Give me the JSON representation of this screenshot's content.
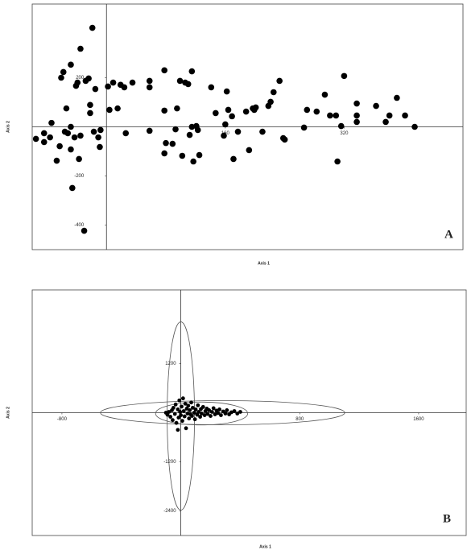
{
  "chart_data": [
    {
      "type": "scatter",
      "panel_label": "A",
      "xlabel": "Axis 1",
      "ylabel": "Axis 2",
      "color": "#000000",
      "xlim": [
        -100,
        480
      ],
      "ylim": [
        -500,
        500
      ],
      "xticks": [
        160,
        320
      ],
      "yticks": [
        200,
        -200,
        -400
      ],
      "x": [
        -95,
        -84,
        -84,
        -76,
        -74,
        -67,
        -63,
        -61,
        -58,
        -56,
        -54,
        -52,
        -48,
        -48,
        -48,
        -46,
        -43,
        -41,
        -39,
        -37,
        -35,
        -35,
        -30,
        -28,
        -24,
        -22,
        -22,
        -19,
        -17,
        -15,
        -11,
        -9,
        -8,
        2,
        4,
        9,
        15,
        19,
        24,
        26,
        35,
        58,
        58,
        58,
        78,
        78,
        78,
        80,
        89,
        93,
        95,
        99,
        102,
        106,
        110,
        112,
        115,
        115,
        117,
        121,
        123,
        125,
        141,
        147,
        158,
        160,
        162,
        164,
        169,
        171,
        177,
        188,
        192,
        197,
        199,
        201,
        210,
        218,
        221,
        225,
        233,
        238,
        240,
        266,
        270,
        283,
        294,
        301,
        309,
        311,
        316,
        320,
        337,
        337,
        337,
        363,
        376,
        381,
        391,
        402,
        415
      ],
      "values": [
        -49,
        -62,
        -26,
        -43,
        16,
        -138,
        -79,
        200,
        223,
        -20,
        75,
        -26,
        -92,
        0,
        253,
        -249,
        -43,
        167,
        180,
        -131,
        318,
        -36,
        -423,
        187,
        197,
        89,
        56,
        403,
        -20,
        154,
        -43,
        -82,
        -13,
        164,
        69,
        180,
        75,
        171,
        161,
        -26,
        180,
        -16,
        187,
        161,
        230,
        66,
        -108,
        -66,
        -69,
        -10,
        75,
        187,
        -118,
        180,
        174,
        -33,
        226,
        0,
        -141,
        3,
        -13,
        -115,
        161,
        56,
        -36,
        10,
        144,
        69,
        43,
        -131,
        -20,
        62,
        -95,
        75,
        69,
        79,
        -20,
        85,
        102,
        141,
        187,
        -46,
        -52,
        -3,
        69,
        62,
        131,
        46,
        46,
        -141,
        3,
        207,
        95,
        46,
        20,
        85,
        20,
        46,
        118,
        46,
        0
      ]
    },
    {
      "type": "scatter",
      "panel_label": "B",
      "xlabel": "Axis 1",
      "ylabel": "Axis 2",
      "color": "#000000",
      "xlim": [
        -1000,
        1920
      ],
      "ylim": [
        -3000,
        3000
      ],
      "xticks": [
        -800,
        800,
        1600
      ],
      "yticks": [
        1200,
        -1200,
        -2400
      ],
      "x": [
        -90,
        -80,
        -70,
        -60,
        -55,
        -50,
        -40,
        -35,
        -30,
        -20,
        -15,
        -10,
        -5,
        0,
        5,
        10,
        15,
        20,
        25,
        30,
        35,
        40,
        45,
        50,
        55,
        60,
        65,
        70,
        75,
        80,
        90,
        95,
        100,
        110,
        115,
        120,
        130,
        135,
        140,
        150,
        160,
        165,
        175,
        180,
        190,
        200,
        210,
        220,
        230,
        240,
        250,
        260,
        270,
        285,
        300,
        310,
        325,
        340,
        360,
        380,
        400,
        -100,
        -20
      ],
      "values": [
        -50,
        20,
        -100,
        60,
        -180,
        120,
        -30,
        200,
        -250,
        80,
        -120,
        300,
        20,
        -60,
        150,
        -200,
        350,
        40,
        -90,
        220,
        -380,
        100,
        -20,
        170,
        -140,
        60,
        -40,
        250,
        -80,
        120,
        0,
        -160,
        80,
        -50,
        180,
        20,
        -100,
        90,
        -20,
        140,
        -60,
        40,
        100,
        -30,
        60,
        -80,
        20,
        110,
        -40,
        50,
        -10,
        80,
        -60,
        30,
        -20,
        60,
        -40,
        10,
        40,
        -20,
        20,
        0,
        -420
      ],
      "ellipses": [
        {
          "cx": 0,
          "cy": -80,
          "rx": 92,
          "ry": 2300
        },
        {
          "cx": 281,
          "cy": 0,
          "rx": 822,
          "ry": 295
        },
        {
          "cx": 140,
          "cy": -20,
          "rx": 310,
          "ry": 280
        }
      ]
    }
  ]
}
